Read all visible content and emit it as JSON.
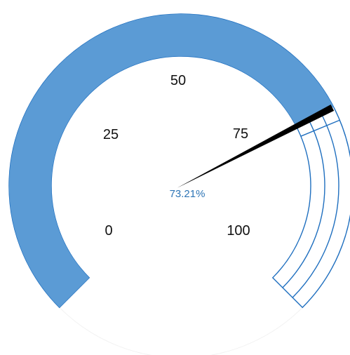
{
  "chart_data": {
    "type": "gauge",
    "min": 0,
    "max": 100,
    "value": 73.21,
    "value_label": "73.21%",
    "ticks": [
      0,
      25,
      50,
      75,
      100
    ],
    "tick_labels": [
      "0",
      "25",
      "50",
      "75",
      "100"
    ],
    "bands": 3,
    "segments": 4,
    "colors": {
      "fill": "#5b9bd5",
      "stroke": "#1f6fbf",
      "empty": "#ffffff",
      "needle": "#000000",
      "value_text": "#2e75b6"
    }
  }
}
